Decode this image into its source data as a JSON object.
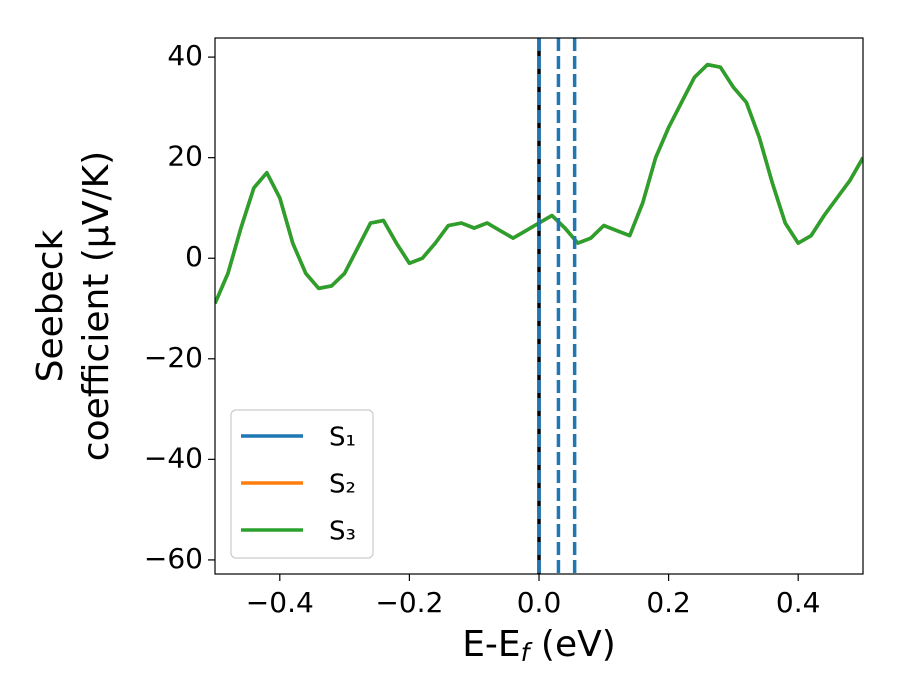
{
  "chart_data": {
    "type": "line",
    "xlabel": [
      "E-E",
      "f",
      " (eV)"
    ],
    "ylabel": [
      "Seebeck",
      "coefficient  (μV/K)"
    ],
    "x": [
      -0.5,
      -0.48,
      -0.46,
      -0.44,
      -0.42,
      -0.4,
      -0.38,
      -0.36,
      -0.34,
      -0.32,
      -0.3,
      -0.28,
      -0.26,
      -0.24,
      -0.22,
      -0.2,
      -0.18,
      -0.16,
      -0.14,
      -0.12,
      -0.1,
      -0.08,
      -0.06,
      -0.04,
      -0.02,
      0,
      0.02,
      0.04,
      0.06,
      0.08,
      0.1,
      0.12,
      0.14,
      0.16,
      0.18,
      0.2,
      0.22,
      0.24,
      0.26,
      0.28,
      0.3,
      0.32,
      0.34,
      0.36,
      0.38,
      0.4,
      0.42,
      0.44,
      0.46,
      0.48,
      0.5
    ],
    "series": [
      {
        "name": "S₁",
        "color": "#1f77b4",
        "values": [
          -9,
          -3,
          6,
          14,
          17,
          12,
          3,
          -3,
          -6,
          -5.5,
          -3,
          2,
          7,
          7.5,
          3,
          -1,
          0,
          3,
          6.5,
          7,
          6,
          7,
          5.5,
          4,
          5.5,
          7,
          8.5,
          6,
          3,
          4,
          6.5,
          5.5,
          4.5,
          11,
          20,
          26,
          31,
          36,
          38.5,
          38,
          34,
          31,
          24,
          15,
          7,
          3,
          4.5,
          8.5,
          12,
          15.5,
          20
        ]
      },
      {
        "name": "S₂",
        "color": "#ff7f0e",
        "values": [
          -9,
          -3,
          6,
          14,
          17,
          12,
          3,
          -3,
          -6,
          -5.5,
          -3,
          2,
          7,
          7.5,
          3,
          -1,
          0,
          3,
          6.5,
          7,
          6,
          7,
          5.5,
          4,
          5.5,
          7,
          8.5,
          6,
          3,
          4,
          6.5,
          5.5,
          4.5,
          11,
          20,
          26,
          31,
          36,
          38.5,
          38,
          34,
          31,
          24,
          15,
          7,
          3,
          4.5,
          8.5,
          12,
          15.5,
          20
        ]
      },
      {
        "name": "S₃",
        "color": "#2ca02c",
        "values": [
          -9,
          -3,
          6,
          14,
          17,
          12,
          3,
          -3,
          -6,
          -5.5,
          -3,
          2,
          7,
          7.5,
          3,
          -1,
          0,
          3,
          6.5,
          7,
          6,
          7,
          5.5,
          4,
          5.5,
          7,
          8.5,
          6,
          3,
          4,
          6.5,
          5.5,
          4.5,
          11,
          20,
          26,
          31,
          36,
          38.5,
          38,
          34,
          31,
          24,
          15,
          7,
          3,
          4.5,
          8.5,
          12,
          15.5,
          20
        ]
      }
    ],
    "vlines": [
      {
        "x": 0,
        "color": "#000000",
        "style": "solid"
      },
      {
        "x": 0,
        "color": "#1f77b4",
        "style": "dashed"
      },
      {
        "x": 0.03,
        "color": "#1f77b4",
        "style": "dashed"
      },
      {
        "x": 0.055,
        "color": "#1f77b4",
        "style": "dashed"
      }
    ],
    "xlim": [
      -0.5,
      0.5
    ],
    "xticks": [
      {
        "value": -0.4,
        "label": "−0.4"
      },
      {
        "value": -0.2,
        "label": "−0.2"
      },
      {
        "value": 0,
        "label": "0.0"
      },
      0.2,
      0.4
    ],
    "ylim": [
      -62.8,
      43.8
    ],
    "yticks": [
      {
        "value": -60,
        "label": "−60"
      },
      {
        "value": -40,
        "label": "−40"
      },
      {
        "value": -20,
        "label": "−20"
      },
      0,
      20,
      40
    ],
    "grid": false,
    "legend": "lower left"
  }
}
